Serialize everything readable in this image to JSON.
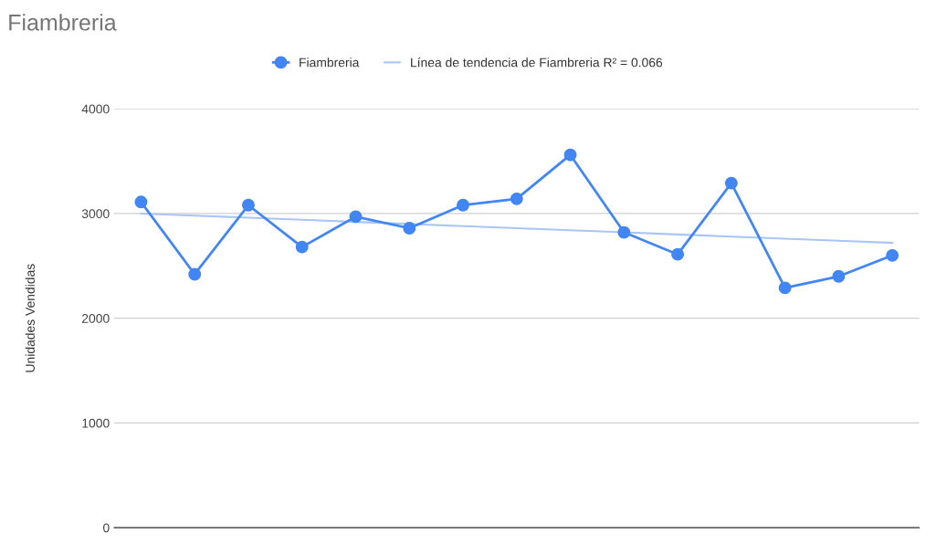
{
  "chart_data": {
    "type": "line",
    "title": "Fiambreria",
    "ylabel": "Unidades Vendidas",
    "categories": [
      null,
      null,
      null,
      null,
      null,
      null,
      null,
      null,
      null,
      null,
      null,
      null,
      null,
      null,
      null
    ],
    "series": [
      {
        "name": "Fiambreria",
        "color": "#4285f4",
        "marker": "circle",
        "values": [
          3110,
          2420,
          3080,
          2680,
          2970,
          2860,
          3080,
          3140,
          3560,
          2820,
          2610,
          3290,
          2290,
          2400,
          2600
        ]
      },
      {
        "name": "Línea de tendencia de Fiambreria R² = 0.066",
        "color": "#a9c5f7",
        "marker": "none",
        "values": [
          3000,
          2980,
          2960,
          2940,
          2920,
          2900,
          2880,
          2860,
          2840,
          2820,
          2800,
          2780,
          2760,
          2740,
          2720
        ]
      }
    ],
    "ylim": [
      0,
      4000
    ],
    "yticks": [
      0,
      1000,
      2000,
      3000,
      4000
    ],
    "grid": "y",
    "legend": "top",
    "tick_labels": "y"
  }
}
